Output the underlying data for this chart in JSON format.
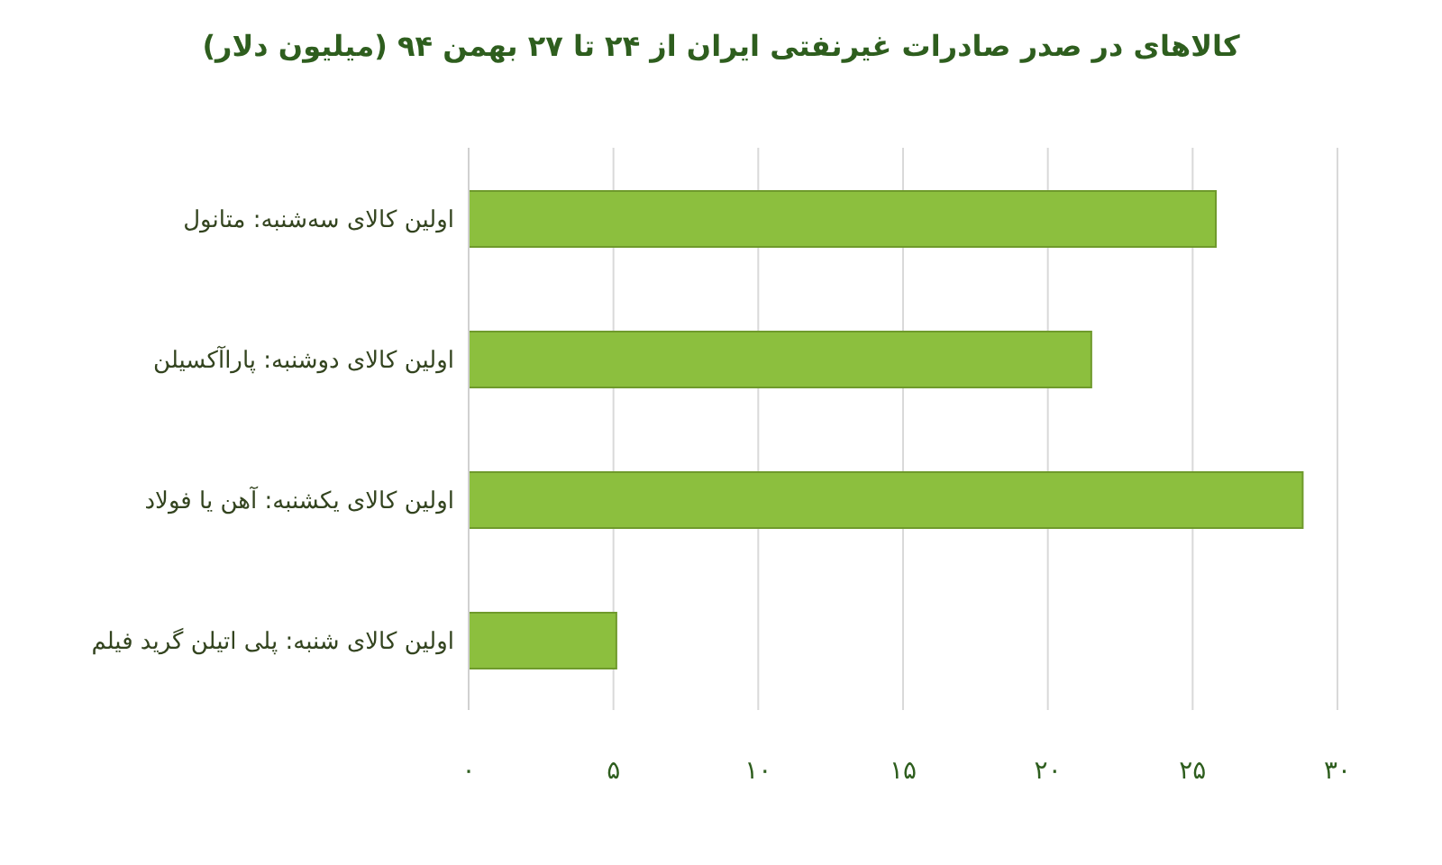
{
  "chart_data": {
    "type": "bar",
    "orientation": "horizontal",
    "title": "کالاهای در صدر صادرات غیرنفتی ایران از ۲۴ تا ۲۷ بهمن ۹۴ (میلیون دلار)",
    "categories": [
      "اولین کالای سه‌شنبه: متانول",
      "اولین کالای دوشنبه: پاراآکسیلن",
      "اولین کالای یکشنبه: آهن یا فولاد",
      "اولین کالای شنبه: پلی اتیلن گرید فیلم"
    ],
    "values": [
      25.8,
      21.5,
      28.8,
      5.1
    ],
    "color": "#8cbf3e",
    "xlim": [
      0,
      30
    ],
    "xticks": [
      {
        "value": 0,
        "label": "۰"
      },
      {
        "value": 5,
        "label": "۵"
      },
      {
        "value": 10,
        "label": "۱۰"
      },
      {
        "value": 15,
        "label": "۱۵"
      },
      {
        "value": 20,
        "label": "۲۰"
      },
      {
        "value": 25,
        "label": "۲۵"
      },
      {
        "value": 30,
        "label": "۳۰"
      }
    ],
    "grid": "x"
  }
}
